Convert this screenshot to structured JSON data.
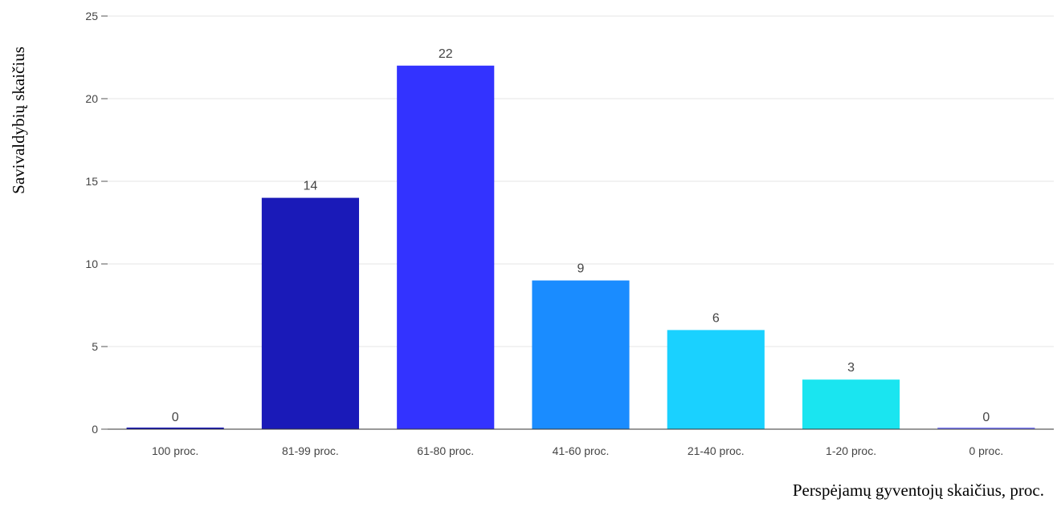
{
  "chart_data": {
    "type": "bar",
    "title": "",
    "xlabel": "Perspėjamų gyventojų skaičius, proc.",
    "ylabel": "Savivaldybių skaičius",
    "categories": [
      "100 proc.",
      "81-99 proc.",
      "61-80 proc.",
      "41-60 proc.",
      "21-40 proc.",
      "1-20 proc.",
      "0 proc."
    ],
    "values": [
      0,
      14,
      22,
      9,
      6,
      3,
      0
    ],
    "bar_colors": [
      "#1a1ab8",
      "#1a1ab8",
      "#3333ff",
      "#1a8cff",
      "#1ad1ff",
      "#1ae5f0",
      "#8080ff"
    ],
    "ylim": [
      0,
      25
    ],
    "yticks": [
      0,
      5,
      10,
      15,
      20,
      25
    ],
    "grid": true,
    "data_labels": true,
    "legend": "none"
  }
}
